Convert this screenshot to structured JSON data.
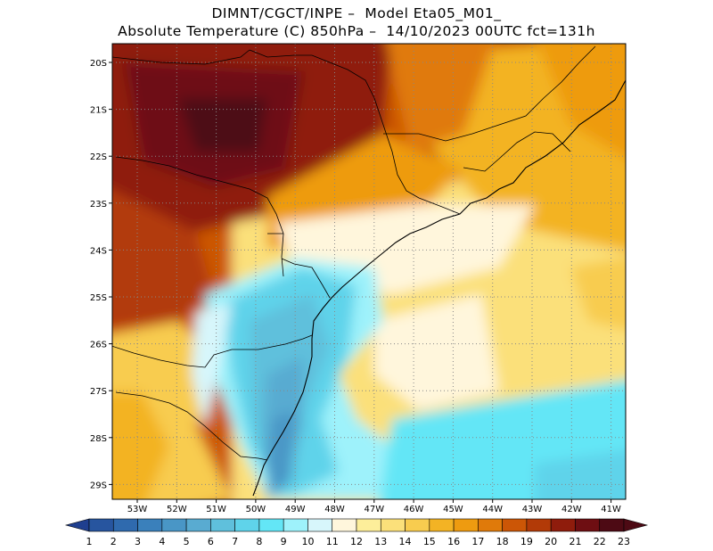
{
  "title": {
    "line1": "DIMNT/CGCT/INPE –  Model Eta05_M01_",
    "line2": "Absolute Temperature (C) 850hPa –  14/10/2023 00UTC fct=131h"
  },
  "map": {
    "lat_labels": [
      "20S",
      "21S",
      "22S",
      "23S",
      "24S",
      "25S",
      "26S",
      "27S",
      "28S",
      "29S"
    ],
    "lon_labels": [
      "53W",
      "52W",
      "51W",
      "50W",
      "49W",
      "48W",
      "47W",
      "46W",
      "45W",
      "44W",
      "43W",
      "42W",
      "41W"
    ]
  },
  "colorbar": {
    "labels": [
      "1",
      "2",
      "3",
      "4",
      "5",
      "6",
      "7",
      "8",
      "9",
      "10",
      "11",
      "12",
      "13",
      "14",
      "15",
      "16",
      "17",
      "18",
      "19",
      "20",
      "21",
      "22",
      "23"
    ],
    "colors": [
      "#1f3f8f",
      "#27559f",
      "#2f6aae",
      "#3a80bb",
      "#4996c6",
      "#59abd1",
      "#5fc0dc",
      "#5fd3ea",
      "#63e6f6",
      "#9ef2fb",
      "#d7f6fb",
      "#fff6dc",
      "#fdee9a",
      "#fbe07a",
      "#f8cc4f",
      "#f3b324",
      "#ee9b10",
      "#e07a0a",
      "#cc5606",
      "#b23a07",
      "#8f1c0c",
      "#6e0e12",
      "#4d0a14"
    ],
    "under_color": "#1f3f8f",
    "over_color": "#4d0a14"
  }
}
